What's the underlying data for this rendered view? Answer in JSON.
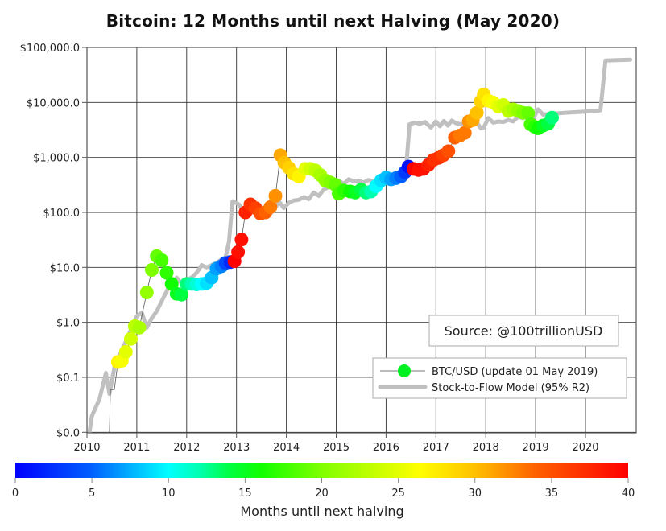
{
  "title": "Bitcoin: 12 Months until next Halving (May 2020)",
  "source_box": "Source: @100trillionUSD",
  "legend": {
    "btc": "BTC/USD (update 01 May 2019)",
    "s2f": "Stock-to-Flow Model (95% R2)"
  },
  "colorbar": {
    "label": "Months until next halving",
    "ticks": [
      "0",
      "5",
      "10",
      "15",
      "20",
      "25",
      "30",
      "35",
      "40"
    ],
    "min": 0,
    "max": 40
  },
  "colors": {
    "s2f_line": "#c0c0c0",
    "grid": "#333333",
    "price_line": "#555555",
    "legend_marker": "#00f020"
  },
  "chart_data": {
    "type": "scatter",
    "title": "Bitcoin: 12 Months until next Halving (May 2020)",
    "xlabel": "",
    "ylabel": "",
    "yscale": "log",
    "ylim": [
      0.01,
      100000
    ],
    "xlim": [
      2010,
      2020.95
    ],
    "x_ticks": [
      "2010",
      "2011",
      "2012",
      "2013",
      "2014",
      "2015",
      "2016",
      "2017",
      "2018",
      "2019",
      "2020"
    ],
    "y_ticks": [
      "$100,000.0",
      "$10,000.0",
      "$1,000.0",
      "$100.0",
      "$10.0",
      "$1.0",
      "$0.1",
      "$0.0"
    ],
    "grid": true,
    "legend_position": "lower right",
    "color_by": "months until next halving (0-40, jet colormap)",
    "series": [
      {
        "name": "BTC/USD (update 01 May 2019)",
        "type": "scatter+line",
        "points": [
          {
            "x": 2010.62,
            "y": 0.19,
            "m": 27
          },
          {
            "x": 2010.7,
            "y": 0.2,
            "m": 26
          },
          {
            "x": 2010.78,
            "y": 0.29,
            "m": 25
          },
          {
            "x": 2010.88,
            "y": 0.5,
            "m": 24
          },
          {
            "x": 2010.96,
            "y": 0.85,
            "m": 23
          },
          {
            "x": 2011.05,
            "y": 0.8,
            "m": 22
          },
          {
            "x": 2011.2,
            "y": 3.5,
            "m": 21
          },
          {
            "x": 2011.3,
            "y": 9.0,
            "m": 20
          },
          {
            "x": 2011.4,
            "y": 16.0,
            "m": 19
          },
          {
            "x": 2011.5,
            "y": 13.5,
            "m": 18
          },
          {
            "x": 2011.6,
            "y": 8.0,
            "m": 17
          },
          {
            "x": 2011.7,
            "y": 5.0,
            "m": 16
          },
          {
            "x": 2011.8,
            "y": 3.3,
            "m": 15
          },
          {
            "x": 2011.9,
            "y": 3.2,
            "m": 14
          },
          {
            "x": 2012.0,
            "y": 5.0,
            "m": 13
          },
          {
            "x": 2012.1,
            "y": 5.0,
            "m": 12
          },
          {
            "x": 2012.2,
            "y": 4.9,
            "m": 11
          },
          {
            "x": 2012.3,
            "y": 5.0,
            "m": 10
          },
          {
            "x": 2012.4,
            "y": 5.2,
            "m": 9
          },
          {
            "x": 2012.5,
            "y": 6.5,
            "m": 8
          },
          {
            "x": 2012.6,
            "y": 9.5,
            "m": 7
          },
          {
            "x": 2012.7,
            "y": 10.5,
            "m": 6
          },
          {
            "x": 2012.78,
            "y": 12.0,
            "m": 4
          },
          {
            "x": 2012.88,
            "y": 12.5,
            "m": 2
          },
          {
            "x": 2012.96,
            "y": 13.0,
            "m": 40
          },
          {
            "x": 2013.03,
            "y": 19.0,
            "m": 39
          },
          {
            "x": 2013.1,
            "y": 32.0,
            "m": 39
          },
          {
            "x": 2013.18,
            "y": 100.0,
            "m": 38
          },
          {
            "x": 2013.28,
            "y": 140.0,
            "m": 37
          },
          {
            "x": 2013.38,
            "y": 120.0,
            "m": 36
          },
          {
            "x": 2013.48,
            "y": 95.0,
            "m": 35
          },
          {
            "x": 2013.58,
            "y": 100.0,
            "m": 34
          },
          {
            "x": 2013.68,
            "y": 125.0,
            "m": 33
          },
          {
            "x": 2013.78,
            "y": 200.0,
            "m": 32
          },
          {
            "x": 2013.88,
            "y": 1100.0,
            "m": 31
          },
          {
            "x": 2013.96,
            "y": 800.0,
            "m": 30
          },
          {
            "x": 2014.05,
            "y": 650.0,
            "m": 29
          },
          {
            "x": 2014.15,
            "y": 500.0,
            "m": 28
          },
          {
            "x": 2014.25,
            "y": 450.0,
            "m": 27
          },
          {
            "x": 2014.38,
            "y": 620.0,
            "m": 25
          },
          {
            "x": 2014.48,
            "y": 620.0,
            "m": 24
          },
          {
            "x": 2014.58,
            "y": 580.0,
            "m": 23
          },
          {
            "x": 2014.68,
            "y": 480.0,
            "m": 22
          },
          {
            "x": 2014.78,
            "y": 380.0,
            "m": 21
          },
          {
            "x": 2014.88,
            "y": 350.0,
            "m": 20
          },
          {
            "x": 2014.98,
            "y": 320.0,
            "m": 19
          },
          {
            "x": 2015.05,
            "y": 220.0,
            "m": 18
          },
          {
            "x": 2015.15,
            "y": 250.0,
            "m": 17
          },
          {
            "x": 2015.28,
            "y": 240.0,
            "m": 16
          },
          {
            "x": 2015.38,
            "y": 230.0,
            "m": 15
          },
          {
            "x": 2015.5,
            "y": 260.0,
            "m": 14
          },
          {
            "x": 2015.6,
            "y": 230.0,
            "m": 13
          },
          {
            "x": 2015.7,
            "y": 240.0,
            "m": 12
          },
          {
            "x": 2015.8,
            "y": 300.0,
            "m": 10
          },
          {
            "x": 2015.9,
            "y": 380.0,
            "m": 9
          },
          {
            "x": 2016.0,
            "y": 430.0,
            "m": 8
          },
          {
            "x": 2016.1,
            "y": 400.0,
            "m": 7
          },
          {
            "x": 2016.2,
            "y": 420.0,
            "m": 6
          },
          {
            "x": 2016.3,
            "y": 450.0,
            "m": 5
          },
          {
            "x": 2016.38,
            "y": 540.0,
            "m": 3
          },
          {
            "x": 2016.45,
            "y": 680.0,
            "m": 1
          },
          {
            "x": 2016.55,
            "y": 620.0,
            "m": 40
          },
          {
            "x": 2016.65,
            "y": 590.0,
            "m": 39
          },
          {
            "x": 2016.75,
            "y": 620.0,
            "m": 39
          },
          {
            "x": 2016.85,
            "y": 730.0,
            "m": 38
          },
          {
            "x": 2016.95,
            "y": 900.0,
            "m": 37
          },
          {
            "x": 2017.05,
            "y": 980.0,
            "m": 37
          },
          {
            "x": 2017.15,
            "y": 1100.0,
            "m": 36
          },
          {
            "x": 2017.25,
            "y": 1300.0,
            "m": 35
          },
          {
            "x": 2017.38,
            "y": 2300.0,
            "m": 34
          },
          {
            "x": 2017.48,
            "y": 2500.0,
            "m": 33
          },
          {
            "x": 2017.58,
            "y": 2800.0,
            "m": 33
          },
          {
            "x": 2017.66,
            "y": 4500.0,
            "m": 32
          },
          {
            "x": 2017.74,
            "y": 4800.0,
            "m": 31
          },
          {
            "x": 2017.82,
            "y": 6500.0,
            "m": 30
          },
          {
            "x": 2017.9,
            "y": 10500.0,
            "m": 29
          },
          {
            "x": 2017.96,
            "y": 14000.0,
            "m": 28
          },
          {
            "x": 2018.05,
            "y": 10800.0,
            "m": 27
          },
          {
            "x": 2018.15,
            "y": 10000.0,
            "m": 26
          },
          {
            "x": 2018.25,
            "y": 8500.0,
            "m": 25
          },
          {
            "x": 2018.35,
            "y": 9000.0,
            "m": 24
          },
          {
            "x": 2018.45,
            "y": 7000.0,
            "m": 23
          },
          {
            "x": 2018.55,
            "y": 7500.0,
            "m": 22
          },
          {
            "x": 2018.65,
            "y": 7000.0,
            "m": 21
          },
          {
            "x": 2018.75,
            "y": 6500.0,
            "m": 20
          },
          {
            "x": 2018.85,
            "y": 6400.0,
            "m": 19
          },
          {
            "x": 2018.9,
            "y": 4000.0,
            "m": 18
          },
          {
            "x": 2018.98,
            "y": 3600.0,
            "m": 17
          },
          {
            "x": 2019.05,
            "y": 3400.0,
            "m": 16
          },
          {
            "x": 2019.15,
            "y": 3800.0,
            "m": 15
          },
          {
            "x": 2019.25,
            "y": 4100.0,
            "m": 14
          },
          {
            "x": 2019.33,
            "y": 5300.0,
            "m": 13
          }
        ]
      },
      {
        "name": "Stock-to-Flow Model (95% R2)",
        "type": "line",
        "points": [
          {
            "x": 2010.05,
            "y": 0.01
          },
          {
            "x": 2010.1,
            "y": 0.02
          },
          {
            "x": 2010.25,
            "y": 0.04
          },
          {
            "x": 2010.38,
            "y": 0.12
          },
          {
            "x": 2010.45,
            "y": 0.05
          },
          {
            "x": 2010.55,
            "y": 0.15
          },
          {
            "x": 2010.65,
            "y": 0.25
          },
          {
            "x": 2010.78,
            "y": 0.45
          },
          {
            "x": 2010.9,
            "y": 0.8
          },
          {
            "x": 2011.0,
            "y": 1.3
          },
          {
            "x": 2011.1,
            "y": 1.5
          },
          {
            "x": 2011.2,
            "y": 0.8
          },
          {
            "x": 2011.3,
            "y": 1.2
          },
          {
            "x": 2011.4,
            "y": 1.6
          },
          {
            "x": 2011.55,
            "y": 3.0
          },
          {
            "x": 2011.65,
            "y": 4.5
          },
          {
            "x": 2011.8,
            "y": 6.5
          },
          {
            "x": 2011.9,
            "y": 5.0
          },
          {
            "x": 2012.0,
            "y": 6.0
          },
          {
            "x": 2012.1,
            "y": 6.5
          },
          {
            "x": 2012.2,
            "y": 8.0
          },
          {
            "x": 2012.3,
            "y": 11.0
          },
          {
            "x": 2012.4,
            "y": 10.0
          },
          {
            "x": 2012.5,
            "y": 11.0
          },
          {
            "x": 2012.6,
            "y": 12.0
          },
          {
            "x": 2012.7,
            "y": 14.0
          },
          {
            "x": 2012.78,
            "y": 15.0
          },
          {
            "x": 2012.85,
            "y": 30.0
          },
          {
            "x": 2012.92,
            "y": 160.0
          },
          {
            "x": 2013.05,
            "y": 140.0
          },
          {
            "x": 2013.15,
            "y": 95.0
          },
          {
            "x": 2013.25,
            "y": 110.0
          },
          {
            "x": 2013.35,
            "y": 120.0
          },
          {
            "x": 2013.45,
            "y": 100.0
          },
          {
            "x": 2013.55,
            "y": 115.0
          },
          {
            "x": 2013.65,
            "y": 90.0
          },
          {
            "x": 2013.75,
            "y": 110.0
          },
          {
            "x": 2013.85,
            "y": 160.0
          },
          {
            "x": 2013.95,
            "y": 120.0
          },
          {
            "x": 2014.05,
            "y": 150.0
          },
          {
            "x": 2014.15,
            "y": 165.0
          },
          {
            "x": 2014.25,
            "y": 170.0
          },
          {
            "x": 2014.35,
            "y": 190.0
          },
          {
            "x": 2014.45,
            "y": 175.0
          },
          {
            "x": 2014.55,
            "y": 230.0
          },
          {
            "x": 2014.65,
            "y": 200.0
          },
          {
            "x": 2014.75,
            "y": 260.0
          },
          {
            "x": 2014.85,
            "y": 290.0
          },
          {
            "x": 2014.95,
            "y": 320.0
          },
          {
            "x": 2015.05,
            "y": 380.0
          },
          {
            "x": 2015.15,
            "y": 330.0
          },
          {
            "x": 2015.25,
            "y": 400.0
          },
          {
            "x": 2015.35,
            "y": 370.0
          },
          {
            "x": 2015.45,
            "y": 380.0
          },
          {
            "x": 2015.55,
            "y": 350.0
          },
          {
            "x": 2015.65,
            "y": 390.0
          },
          {
            "x": 2015.75,
            "y": 360.0
          },
          {
            "x": 2015.85,
            "y": 400.0
          },
          {
            "x": 2015.95,
            "y": 380.0
          },
          {
            "x": 2016.05,
            "y": 420.0
          },
          {
            "x": 2016.15,
            "y": 450.0
          },
          {
            "x": 2016.25,
            "y": 480.0
          },
          {
            "x": 2016.35,
            "y": 550.0
          },
          {
            "x": 2016.4,
            "y": 600.0
          },
          {
            "x": 2016.47,
            "y": 4000.0
          },
          {
            "x": 2016.58,
            "y": 4300.0
          },
          {
            "x": 2016.68,
            "y": 4100.0
          },
          {
            "x": 2016.78,
            "y": 4400.0
          },
          {
            "x": 2016.9,
            "y": 3500.0
          },
          {
            "x": 2017.0,
            "y": 4500.0
          },
          {
            "x": 2017.08,
            "y": 3700.0
          },
          {
            "x": 2017.16,
            "y": 4600.0
          },
          {
            "x": 2017.24,
            "y": 3800.0
          },
          {
            "x": 2017.32,
            "y": 4700.0
          },
          {
            "x": 2017.4,
            "y": 4200.0
          },
          {
            "x": 2017.5,
            "y": 4000.0
          },
          {
            "x": 2017.6,
            "y": 4300.0
          },
          {
            "x": 2017.7,
            "y": 4100.0
          },
          {
            "x": 2017.8,
            "y": 4600.0
          },
          {
            "x": 2017.9,
            "y": 3400.0
          },
          {
            "x": 2017.96,
            "y": 3500.0
          },
          {
            "x": 2018.05,
            "y": 5200.0
          },
          {
            "x": 2018.15,
            "y": 4300.0
          },
          {
            "x": 2018.25,
            "y": 4500.0
          },
          {
            "x": 2018.35,
            "y": 4400.0
          },
          {
            "x": 2018.45,
            "y": 4800.0
          },
          {
            "x": 2018.55,
            "y": 4500.0
          },
          {
            "x": 2018.65,
            "y": 5500.0
          },
          {
            "x": 2018.75,
            "y": 5200.0
          },
          {
            "x": 2018.85,
            "y": 7000.0
          },
          {
            "x": 2018.95,
            "y": 5000.0
          },
          {
            "x": 2019.05,
            "y": 7500.0
          },
          {
            "x": 2019.15,
            "y": 6000.0
          },
          {
            "x": 2019.3,
            "y": 6200.0
          },
          {
            "x": 2019.6,
            "y": 6500.0
          },
          {
            "x": 2020.0,
            "y": 6800.0
          },
          {
            "x": 2020.3,
            "y": 7200.0
          },
          {
            "x": 2020.4,
            "y": 58000.0
          },
          {
            "x": 2020.9,
            "y": 60000.0
          }
        ]
      }
    ]
  }
}
